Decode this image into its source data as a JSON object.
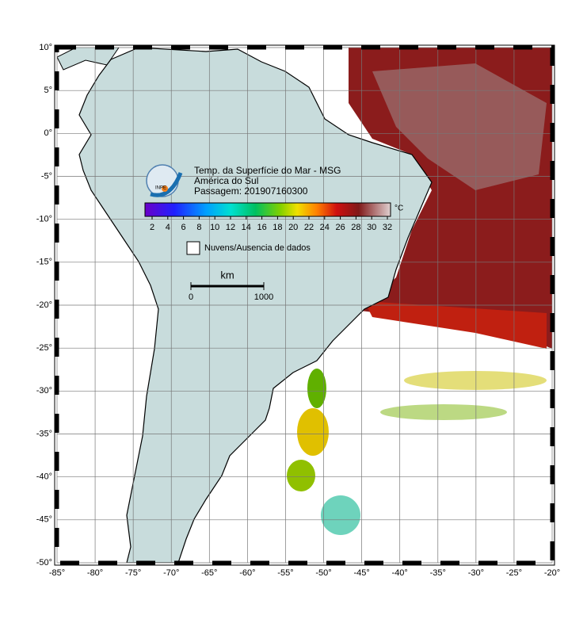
{
  "map": {
    "title_lines": [
      "Temp. da Superfície do Mar - MSG",
      "América do Sul",
      "Passagem: 201907160300"
    ],
    "logo_text": "INPE",
    "colorbar": {
      "unit": "°C",
      "ticks": [
        2,
        4,
        6,
        8,
        10,
        12,
        14,
        16,
        18,
        20,
        22,
        24,
        26,
        28,
        30,
        32
      ]
    },
    "legend": "Nuvens/Ausencia de dados",
    "scale": {
      "unit": "km",
      "ticks": [
        0,
        1000
      ]
    },
    "xlim": [
      -85,
      -20
    ],
    "ylim": [
      -50,
      10
    ],
    "xticks": [
      {
        "value": -85,
        "label": "-85°"
      },
      {
        "value": -80,
        "label": "-80°"
      },
      {
        "value": -75,
        "label": "-75°"
      },
      {
        "value": -70,
        "label": "-70°"
      },
      {
        "value": -65,
        "label": "-65°"
      },
      {
        "value": -60,
        "label": "-60°"
      },
      {
        "value": -55,
        "label": "-55°"
      },
      {
        "value": -50,
        "label": "-50°"
      },
      {
        "value": -45,
        "label": "-45°"
      },
      {
        "value": -40,
        "label": "-40°"
      },
      {
        "value": -35,
        "label": "-35°"
      },
      {
        "value": -30,
        "label": "-30°"
      },
      {
        "value": -25,
        "label": "-25°"
      },
      {
        "value": -20,
        "label": "-20°"
      }
    ],
    "yticks": [
      {
        "value": 10,
        "label": "10°"
      },
      {
        "value": 5,
        "label": "5°"
      },
      {
        "value": 0,
        "label": "0°"
      },
      {
        "value": -5,
        "label": "-5°"
      },
      {
        "value": -10,
        "label": "-10°"
      },
      {
        "value": -15,
        "label": "-15°"
      },
      {
        "value": -20,
        "label": "-20°"
      },
      {
        "value": -25,
        "label": "-25°"
      },
      {
        "value": -30,
        "label": "-30°"
      },
      {
        "value": -35,
        "label": "-35°"
      },
      {
        "value": -40,
        "label": "-40°"
      },
      {
        "value": -45,
        "label": "-45°"
      },
      {
        "value": -50,
        "label": "-50°"
      }
    ]
  }
}
